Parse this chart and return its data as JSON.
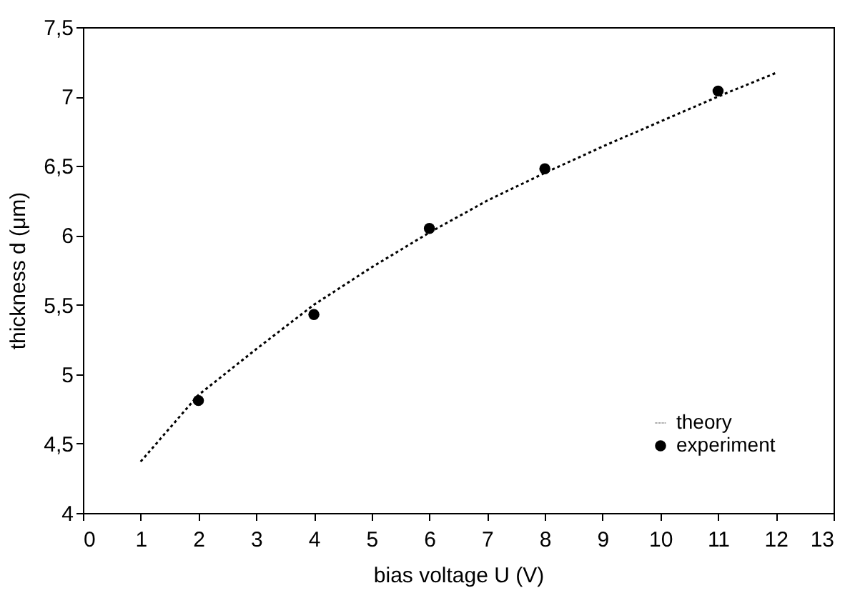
{
  "chart_data": {
    "type": "line",
    "xlabel": "bias voltage U (V)",
    "ylabel": "thickness d (μm)",
    "xlim": [
      0,
      13
    ],
    "xticks": [
      0,
      1,
      2,
      3,
      4,
      5,
      6,
      7,
      8,
      9,
      10,
      11,
      12,
      13
    ],
    "ylim": [
      4,
      7.5
    ],
    "yticks": [
      4,
      {
        "value": 4.5,
        "label": "4,5"
      },
      5,
      {
        "value": 5.5,
        "label": "5,5"
      },
      6,
      {
        "value": 6.5,
        "label": "6,5"
      },
      7,
      {
        "value": 7.5,
        "label": "7,5"
      }
    ],
    "grid": false,
    "legend": "bottom right",
    "series": [
      {
        "name": "theory",
        "line_style": "dotted",
        "marker": "none",
        "color": "#000000",
        "x": [
          1,
          2,
          3,
          4,
          5,
          6,
          7,
          8,
          9,
          10,
          11,
          12
        ],
        "values": [
          4.37,
          4.85,
          5.18,
          5.5,
          5.77,
          6.02,
          6.25,
          6.45,
          6.64,
          6.82,
          7.0,
          7.17
        ]
      },
      {
        "name": "experiment",
        "type": "scatter",
        "marker": "circle",
        "color": "#000000",
        "x": [
          2,
          4,
          6,
          8,
          11
        ],
        "values": [
          4.81,
          5.43,
          6.05,
          6.48,
          7.04
        ]
      }
    ]
  }
}
